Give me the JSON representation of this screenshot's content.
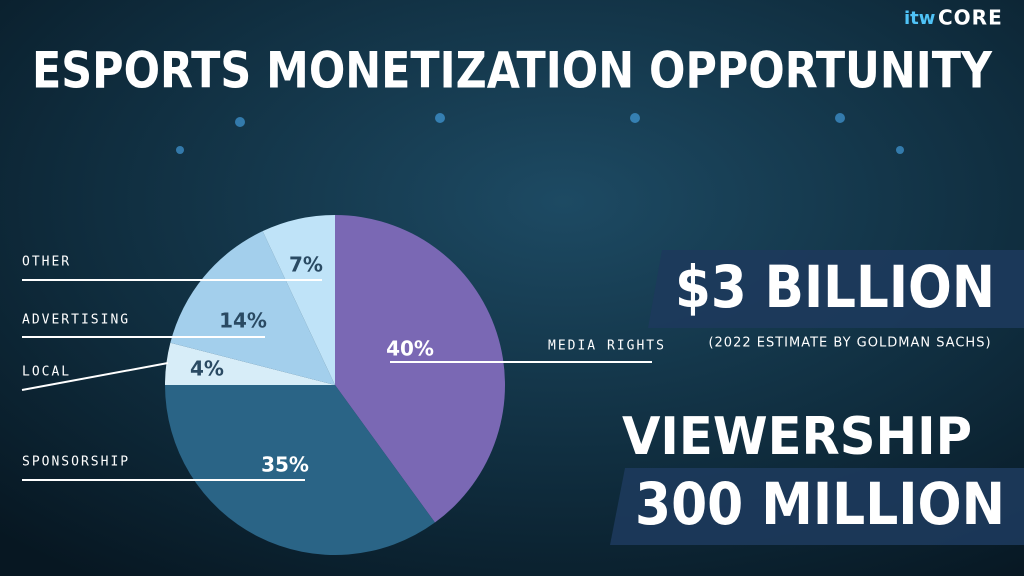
{
  "logo": {
    "brand": "itw",
    "name": "CORE"
  },
  "chart_data": {
    "type": "pie",
    "title": "ESPORTS MONETIZATION OPPORTUNITY",
    "categories": [
      "MEDIA RIGHTS",
      "SPONSORSHIP",
      "LOCAL",
      "ADVERTISING",
      "OTHER"
    ],
    "values": [
      40,
      35,
      4,
      14,
      7
    ],
    "value_labels": [
      "40%",
      "35%",
      "4%",
      "14%",
      "7%"
    ],
    "colors": [
      "#7a68b4",
      "#2a6486",
      "#d7edf8",
      "#a3cfec",
      "#bfe3f8"
    ],
    "annotations": {
      "revenue": "$3 BILLION",
      "revenue_note": "(2022 ESTIMATE BY GOLDMAN SACHS)",
      "viewership_label": "VIEWERSHIP",
      "viewership": "300 MILLION"
    }
  }
}
